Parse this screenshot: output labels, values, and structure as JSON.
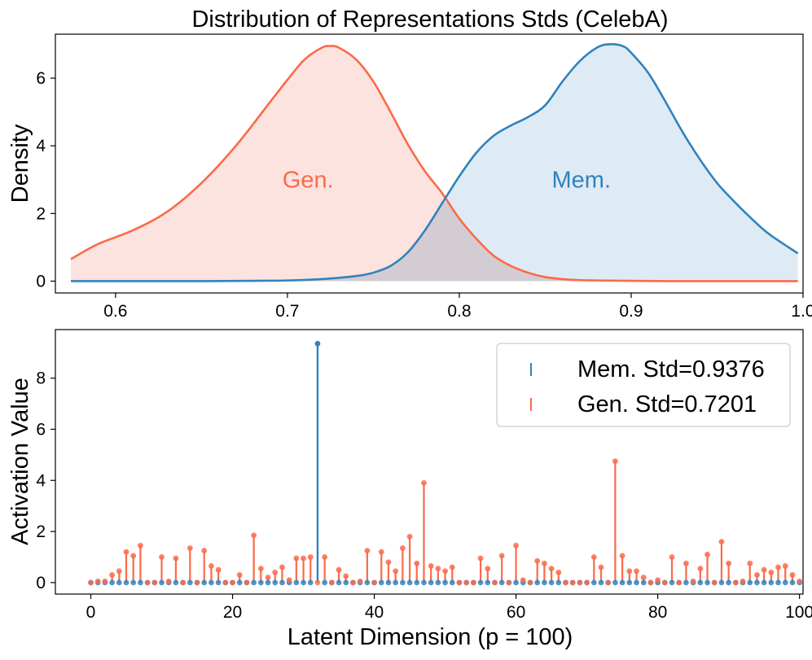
{
  "colors": {
    "mem": "#3182bd",
    "gen": "#fb6a4a",
    "mem_fill": "#d4e4f0",
    "gen_fill": "#fde0dc"
  },
  "chart_data": [
    {
      "type": "area",
      "title": "Distribution of Representations Stds (CelebA)",
      "xlabel": "",
      "ylabel": "Density",
      "xlim": [
        0.565,
        1.0
      ],
      "ylim": [
        -0.35,
        7.3
      ],
      "xticks": [
        0.6,
        0.7,
        0.8,
        0.9,
        1.0
      ],
      "xtick_labels": [
        "0.6",
        "0.7",
        "0.8",
        "0.9",
        "1.0"
      ],
      "yticks": [
        0,
        2,
        4,
        6
      ],
      "ytick_labels": [
        "0",
        "2",
        "4",
        "6"
      ],
      "annotations": [
        {
          "text": "Gen.",
          "x": 0.712,
          "y": 3.0,
          "series": "Gen."
        },
        {
          "text": "Mem.",
          "x": 0.871,
          "y": 3.0,
          "series": "Mem."
        }
      ],
      "series": [
        {
          "name": "Gen.",
          "x": [
            0.574,
            0.59,
            0.61,
            0.63,
            0.65,
            0.67,
            0.69,
            0.7,
            0.71,
            0.72,
            0.725,
            0.73,
            0.74,
            0.75,
            0.76,
            0.77,
            0.78,
            0.79,
            0.8,
            0.81,
            0.82,
            0.83,
            0.84,
            0.85,
            0.86,
            0.87,
            0.88,
            0.9,
            0.92,
            0.95,
            0.997
          ],
          "values": [
            0.65,
            1.1,
            1.5,
            2.05,
            2.9,
            4.0,
            5.3,
            5.95,
            6.55,
            6.9,
            6.95,
            6.9,
            6.55,
            5.9,
            5.0,
            4.05,
            3.25,
            2.6,
            1.85,
            1.25,
            0.75,
            0.45,
            0.25,
            0.12,
            0.06,
            0.03,
            0.02,
            0.01,
            0.0,
            0.0,
            0.0
          ]
        },
        {
          "name": "Mem.",
          "x": [
            0.574,
            0.6,
            0.65,
            0.68,
            0.7,
            0.72,
            0.74,
            0.75,
            0.76,
            0.77,
            0.78,
            0.79,
            0.8,
            0.81,
            0.82,
            0.83,
            0.84,
            0.85,
            0.86,
            0.87,
            0.88,
            0.887,
            0.895,
            0.9,
            0.91,
            0.92,
            0.93,
            0.94,
            0.95,
            0.96,
            0.97,
            0.98,
            0.997
          ],
          "values": [
            0.0,
            0.0,
            0.0,
            0.01,
            0.02,
            0.06,
            0.15,
            0.25,
            0.45,
            0.85,
            1.5,
            2.3,
            3.1,
            3.8,
            4.3,
            4.6,
            4.85,
            5.2,
            5.9,
            6.5,
            6.9,
            7.0,
            6.95,
            6.75,
            6.15,
            5.3,
            4.4,
            3.6,
            2.9,
            2.35,
            1.85,
            1.4,
            0.82
          ]
        }
      ]
    },
    {
      "type": "bar",
      "title": "",
      "xlabel": "Latent Dimension (p = 100)",
      "ylabel": "Activation Value",
      "xlim": [
        -5,
        100.5
      ],
      "ylim": [
        -0.45,
        9.9
      ],
      "xticks": [
        0,
        20,
        40,
        60,
        80,
        100
      ],
      "xtick_labels": [
        "0",
        "20",
        "40",
        "60",
        "80",
        "100"
      ],
      "yticks": [
        0,
        2,
        4,
        6,
        8
      ],
      "ytick_labels": [
        "0",
        "2",
        "4",
        "6",
        "8"
      ],
      "legend": {
        "position": "top-right",
        "entries": [
          "Mem. Std=0.9376",
          "Gen. Std=0.7201"
        ]
      },
      "series": [
        {
          "name": "Mem. Std=0.9376",
          "x": [
            32
          ],
          "values": [
            9.35
          ],
          "note": "all other dimensions are 0"
        },
        {
          "name": "Gen. Std=0.7201",
          "x": [
            1,
            2,
            3,
            4,
            5,
            6,
            7,
            10,
            11,
            12,
            14,
            16,
            17,
            18,
            21,
            23,
            24,
            25,
            26,
            27,
            28,
            29,
            30,
            31,
            33,
            35,
            36,
            38,
            39,
            41,
            42,
            43,
            44,
            45,
            46,
            47,
            48,
            49,
            50,
            51,
            55,
            56,
            58,
            60,
            61,
            63,
            64,
            65,
            66,
            71,
            72,
            74,
            75,
            76,
            77,
            78,
            80,
            82,
            84,
            85,
            86,
            87,
            89,
            90,
            92,
            93,
            94,
            95,
            96,
            97,
            98,
            99,
            100
          ],
          "values": [
            0.05,
            0.05,
            0.3,
            0.45,
            1.2,
            1.05,
            1.45,
            1.0,
            0.05,
            0.95,
            1.35,
            1.25,
            0.65,
            0.5,
            0.3,
            1.85,
            0.55,
            0.2,
            0.4,
            0.6,
            0.1,
            0.95,
            0.95,
            1.0,
            1.0,
            0.5,
            0.25,
            0.05,
            1.25,
            1.2,
            0.8,
            0.45,
            1.35,
            1.8,
            0.75,
            3.9,
            0.65,
            0.55,
            0.45,
            0.6,
            0.95,
            0.55,
            1.05,
            1.45,
            0.1,
            0.85,
            0.75,
            0.55,
            0.4,
            1.0,
            0.6,
            4.75,
            1.05,
            0.45,
            0.45,
            0.2,
            0.1,
            1.0,
            0.75,
            0.05,
            0.55,
            1.1,
            1.6,
            0.75,
            0.05,
            0.75,
            0.3,
            0.5,
            0.4,
            0.6,
            0.65,
            0.3,
            0.05
          ]
        }
      ]
    }
  ]
}
